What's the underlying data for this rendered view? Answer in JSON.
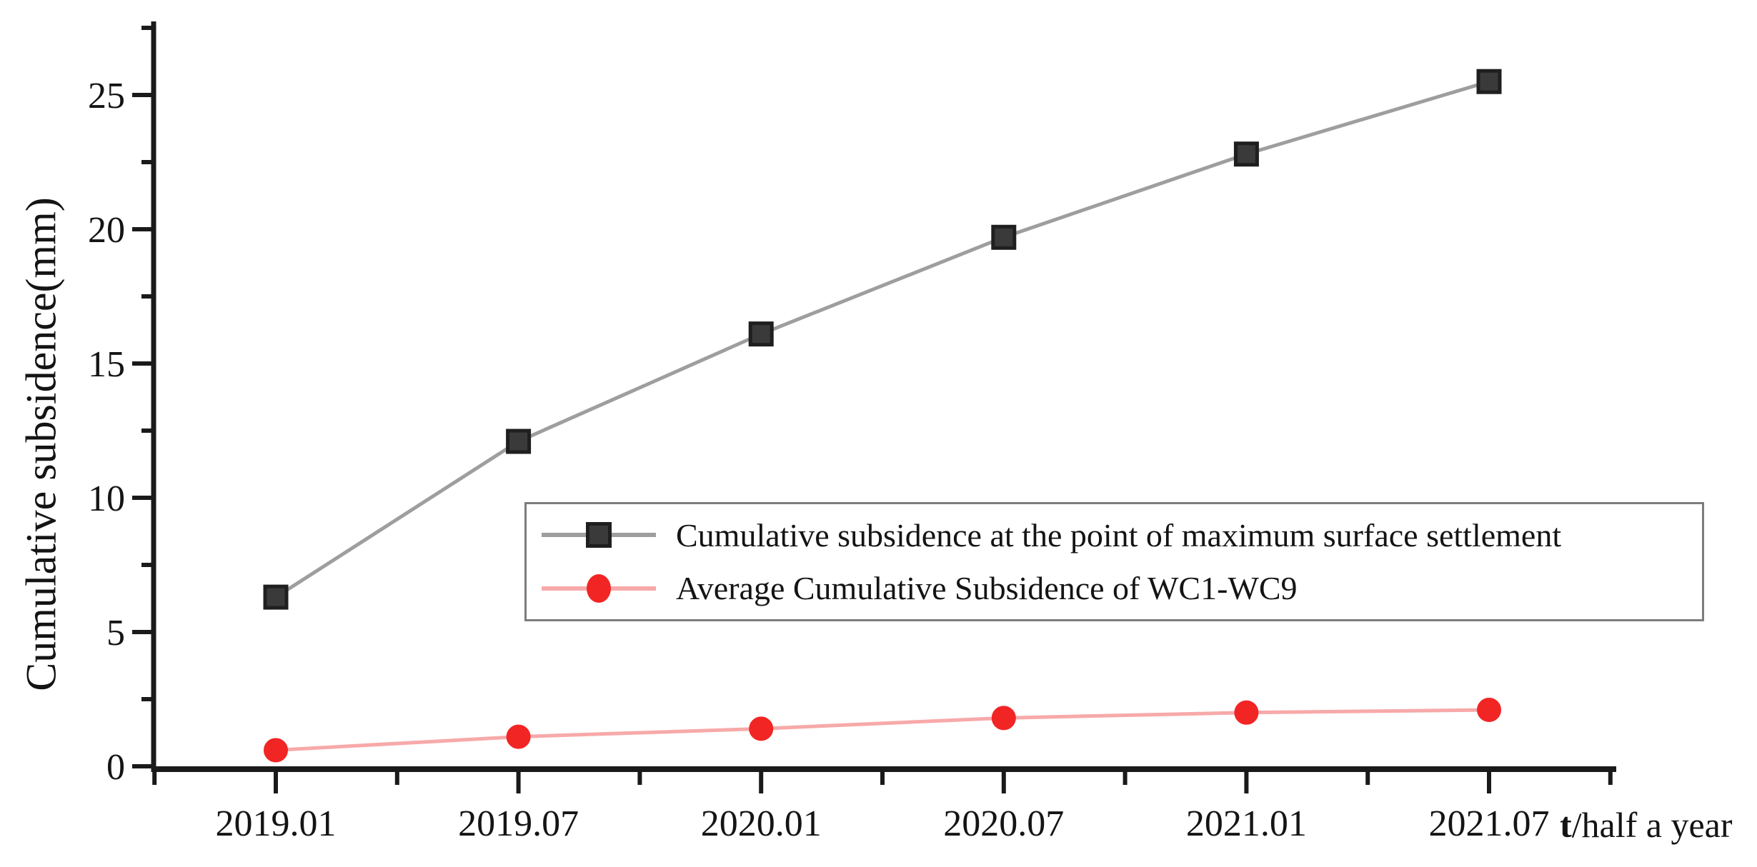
{
  "chart_data": {
    "type": "line",
    "title": "",
    "xlabel": "",
    "ylabel": "Cumulative subsidence(mm)",
    "x_unit_label": {
      "prefix": "t",
      "suffix": "/half a year"
    },
    "categories": [
      "2019.01",
      "2019.07",
      "2020.01",
      "2020.07",
      "2021.01",
      "2021.07"
    ],
    "y_ticks": [
      0,
      5,
      10,
      15,
      20,
      25
    ],
    "y_minor_ticks": [
      2.5,
      7.5,
      12.5,
      17.5,
      22.5,
      27.5
    ],
    "ylim": [
      0,
      27.5
    ],
    "grid": false,
    "legend_position": "inside-middle-right",
    "axis_color": "#1a1a1a",
    "tick_label_color": "#141414",
    "series": [
      {
        "name": "Cumulative subsidence at the point of maximum surface settlement",
        "marker": "square",
        "marker_color": "#3a3a3a",
        "marker_edge_color": "#1f1f1f",
        "line_color": "#9e9e9e",
        "values": [
          6.3,
          12.1,
          16.1,
          19.7,
          22.8,
          25.5
        ]
      },
      {
        "name": "Average Cumulative Subsidence of WC1-WC9",
        "marker": "circle",
        "marker_color": "#f22525",
        "marker_edge_color": "#f22525",
        "line_color": "#f7a9a9",
        "values": [
          0.6,
          1.1,
          1.4,
          1.8,
          2.0,
          2.1
        ]
      }
    ]
  }
}
